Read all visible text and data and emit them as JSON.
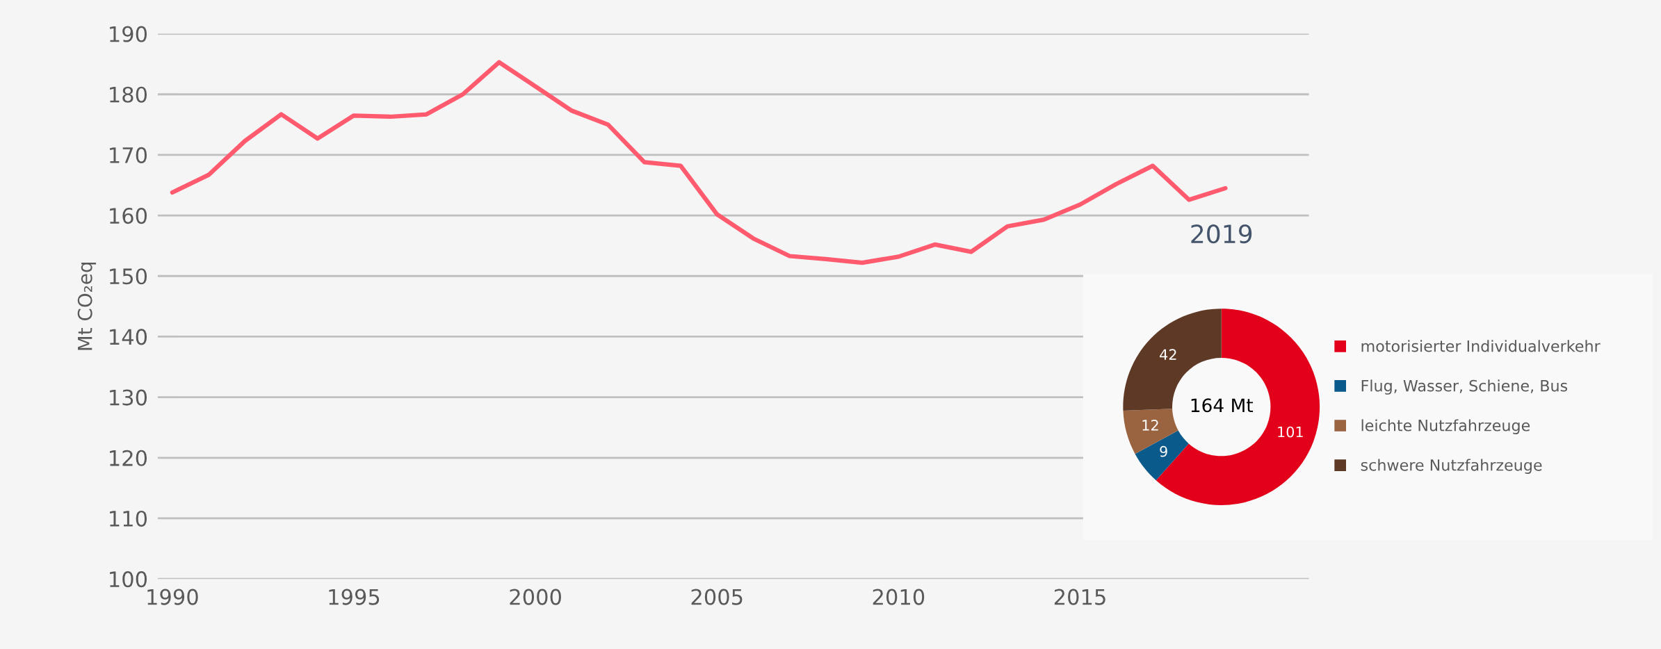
{
  "chart_data": [
    {
      "type": "line",
      "ylabel": "Mt CO₂eq",
      "x": [
        1990,
        1991,
        1992,
        1993,
        1994,
        1995,
        1996,
        1997,
        1998,
        1999,
        2000,
        2001,
        2002,
        2003,
        2004,
        2005,
        2006,
        2007,
        2008,
        2009,
        2010,
        2011,
        2012,
        2013,
        2014,
        2015,
        2016,
        2017,
        2018,
        2019
      ],
      "series": [
        {
          "color": "#ff5a6e",
          "values": [
            163.8,
            166.7,
            172.3,
            176.7,
            172.7,
            176.5,
            176.3,
            176.7,
            180.0,
            185.3,
            181.3,
            177.3,
            175.0,
            168.8,
            168.2,
            160.2,
            156.2,
            153.3,
            152.8,
            152.2,
            153.2,
            155.2,
            154.0,
            158.2,
            159.3,
            161.8,
            165.2,
            168.2,
            162.6,
            164.5
          ]
        }
      ],
      "xlim": [
        1989.6,
        2021.3
      ],
      "xticks": [
        1990,
        1995,
        2000,
        2005,
        2010,
        2015
      ],
      "ylim": [
        100,
        190
      ],
      "yticks": [
        100,
        110,
        120,
        130,
        140,
        150,
        160,
        170,
        180,
        190
      ],
      "grid": "y",
      "marker": "none",
      "line_style": "solid"
    },
    {
      "type": "donut",
      "title": "2019",
      "categories": [
        "motorisierter Individualverkehr",
        "Flug, Wasser, Schiene, Bus",
        "leichte Nutzfahrzeuge",
        "schwere Nutzfahrzeuge"
      ],
      "values": [
        101,
        9,
        12,
        42
      ],
      "colors": [
        "#e2001a",
        "#0a5a8c",
        "#9b6440",
        "#5e3a26"
      ],
      "data_labels": true,
      "legend": "right",
      "annotations": [
        "164 Mt"
      ]
    }
  ]
}
